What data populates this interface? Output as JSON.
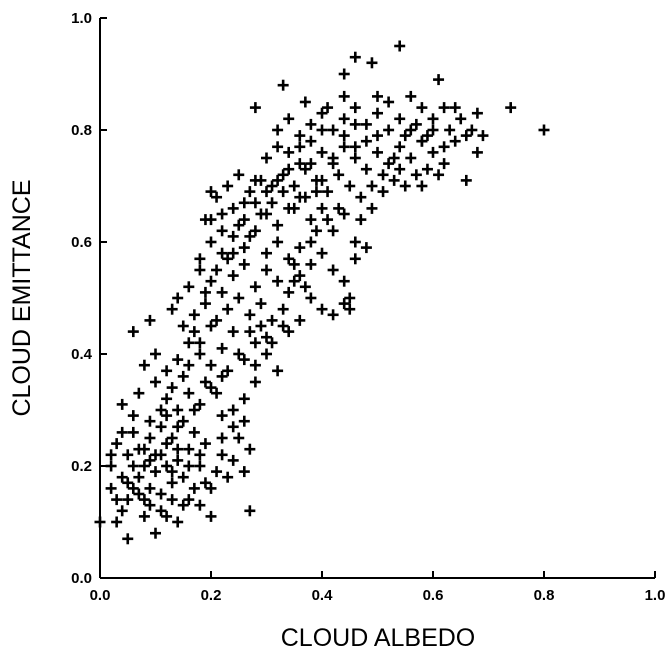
{
  "chart_data": {
    "type": "scatter",
    "title": "",
    "xlabel": "CLOUD ALBEDO",
    "ylabel": "CLOUD EMITTANCE",
    "xlim": [
      0.0,
      1.0
    ],
    "ylim": [
      0.0,
      1.0
    ],
    "x_ticks": [
      "0.0",
      "0.2",
      "0.4",
      "0.6",
      "0.8",
      "1.0"
    ],
    "y_ticks": [
      "0.0",
      "0.2",
      "0.4",
      "0.6",
      "0.8",
      "1.0"
    ],
    "grid": false,
    "marker": "plus",
    "color": "#000000",
    "series": [
      {
        "points": [
          [
            0.0,
            0.1
          ],
          [
            0.05,
            0.07
          ],
          [
            0.1,
            0.08
          ],
          [
            0.04,
            0.12
          ],
          [
            0.08,
            0.14
          ],
          [
            0.12,
            0.11
          ],
          [
            0.14,
            0.1
          ],
          [
            0.06,
            0.16
          ],
          [
            0.03,
            0.14
          ],
          [
            0.09,
            0.16
          ],
          [
            0.07,
            0.18
          ],
          [
            0.11,
            0.15
          ],
          [
            0.13,
            0.17
          ],
          [
            0.16,
            0.14
          ],
          [
            0.18,
            0.13
          ],
          [
            0.2,
            0.11
          ],
          [
            0.02,
            0.2
          ],
          [
            0.05,
            0.22
          ],
          [
            0.08,
            0.2
          ],
          [
            0.1,
            0.22
          ],
          [
            0.12,
            0.24
          ],
          [
            0.14,
            0.21
          ],
          [
            0.16,
            0.23
          ],
          [
            0.18,
            0.2
          ],
          [
            0.21,
            0.19
          ],
          [
            0.23,
            0.18
          ],
          [
            0.27,
            0.12
          ],
          [
            0.03,
            0.24
          ],
          [
            0.06,
            0.26
          ],
          [
            0.09,
            0.28
          ],
          [
            0.11,
            0.27
          ],
          [
            0.13,
            0.25
          ],
          [
            0.15,
            0.28
          ],
          [
            0.17,
            0.26
          ],
          [
            0.19,
            0.24
          ],
          [
            0.22,
            0.22
          ],
          [
            0.25,
            0.25
          ],
          [
            0.27,
            0.23
          ],
          [
            0.04,
            0.31
          ],
          [
            0.07,
            0.33
          ],
          [
            0.1,
            0.35
          ],
          [
            0.12,
            0.32
          ],
          [
            0.14,
            0.3
          ],
          [
            0.16,
            0.33
          ],
          [
            0.18,
            0.31
          ],
          [
            0.2,
            0.34
          ],
          [
            0.22,
            0.36
          ],
          [
            0.24,
            0.3
          ],
          [
            0.26,
            0.28
          ],
          [
            0.08,
            0.38
          ],
          [
            0.1,
            0.4
          ],
          [
            0.12,
            0.37
          ],
          [
            0.14,
            0.39
          ],
          [
            0.16,
            0.42
          ],
          [
            0.18,
            0.4
          ],
          [
            0.2,
            0.38
          ],
          [
            0.22,
            0.41
          ],
          [
            0.24,
            0.44
          ],
          [
            0.26,
            0.39
          ],
          [
            0.28,
            0.42
          ],
          [
            0.3,
            0.43
          ],
          [
            0.06,
            0.44
          ],
          [
            0.09,
            0.46
          ],
          [
            0.13,
            0.48
          ],
          [
            0.15,
            0.45
          ],
          [
            0.17,
            0.47
          ],
          [
            0.19,
            0.49
          ],
          [
            0.21,
            0.46
          ],
          [
            0.23,
            0.48
          ],
          [
            0.25,
            0.5
          ],
          [
            0.27,
            0.47
          ],
          [
            0.29,
            0.49
          ],
          [
            0.31,
            0.46
          ],
          [
            0.33,
            0.48
          ],
          [
            0.14,
            0.5
          ],
          [
            0.16,
            0.52
          ],
          [
            0.18,
            0.55
          ],
          [
            0.2,
            0.53
          ],
          [
            0.22,
            0.51
          ],
          [
            0.24,
            0.54
          ],
          [
            0.26,
            0.56
          ],
          [
            0.28,
            0.52
          ],
          [
            0.3,
            0.55
          ],
          [
            0.32,
            0.53
          ],
          [
            0.34,
            0.51
          ],
          [
            0.36,
            0.54
          ],
          [
            0.38,
            0.5
          ],
          [
            0.4,
            0.48
          ],
          [
            0.42,
            0.47
          ],
          [
            0.44,
            0.49
          ],
          [
            0.45,
            0.48
          ],
          [
            0.18,
            0.57
          ],
          [
            0.2,
            0.6
          ],
          [
            0.22,
            0.58
          ],
          [
            0.24,
            0.61
          ],
          [
            0.26,
            0.59
          ],
          [
            0.28,
            0.62
          ],
          [
            0.3,
            0.58
          ],
          [
            0.32,
            0.6
          ],
          [
            0.34,
            0.57
          ],
          [
            0.36,
            0.59
          ],
          [
            0.38,
            0.56
          ],
          [
            0.4,
            0.58
          ],
          [
            0.42,
            0.55
          ],
          [
            0.44,
            0.53
          ],
          [
            0.46,
            0.57
          ],
          [
            0.2,
            0.64
          ],
          [
            0.22,
            0.62
          ],
          [
            0.24,
            0.66
          ],
          [
            0.26,
            0.64
          ],
          [
            0.28,
            0.67
          ],
          [
            0.3,
            0.65
          ],
          [
            0.32,
            0.63
          ],
          [
            0.34,
            0.66
          ],
          [
            0.36,
            0.68
          ],
          [
            0.38,
            0.64
          ],
          [
            0.4,
            0.66
          ],
          [
            0.42,
            0.62
          ],
          [
            0.44,
            0.65
          ],
          [
            0.46,
            0.6
          ],
          [
            0.48,
            0.59
          ],
          [
            0.21,
            0.68
          ],
          [
            0.23,
            0.7
          ],
          [
            0.25,
            0.72
          ],
          [
            0.27,
            0.69
          ],
          [
            0.29,
            0.71
          ],
          [
            0.31,
            0.7
          ],
          [
            0.33,
            0.72
          ],
          [
            0.35,
            0.7
          ],
          [
            0.37,
            0.73
          ],
          [
            0.39,
            0.71
          ],
          [
            0.41,
            0.69
          ],
          [
            0.43,
            0.72
          ],
          [
            0.45,
            0.7
          ],
          [
            0.47,
            0.68
          ],
          [
            0.49,
            0.7
          ],
          [
            0.51,
            0.69
          ],
          [
            0.53,
            0.71
          ],
          [
            0.55,
            0.7
          ],
          [
            0.57,
            0.72
          ],
          [
            0.59,
            0.73
          ],
          [
            0.61,
            0.72
          ],
          [
            0.66,
            0.71
          ],
          [
            0.3,
            0.75
          ],
          [
            0.32,
            0.77
          ],
          [
            0.34,
            0.76
          ],
          [
            0.36,
            0.74
          ],
          [
            0.38,
            0.78
          ],
          [
            0.4,
            0.76
          ],
          [
            0.42,
            0.74
          ],
          [
            0.44,
            0.77
          ],
          [
            0.46,
            0.75
          ],
          [
            0.48,
            0.78
          ],
          [
            0.5,
            0.76
          ],
          [
            0.52,
            0.74
          ],
          [
            0.54,
            0.77
          ],
          [
            0.56,
            0.75
          ],
          [
            0.58,
            0.78
          ],
          [
            0.6,
            0.76
          ],
          [
            0.62,
            0.74
          ],
          [
            0.64,
            0.78
          ],
          [
            0.68,
            0.76
          ],
          [
            0.32,
            0.8
          ],
          [
            0.34,
            0.82
          ],
          [
            0.36,
            0.79
          ],
          [
            0.38,
            0.81
          ],
          [
            0.4,
            0.83
          ],
          [
            0.42,
            0.8
          ],
          [
            0.44,
            0.82
          ],
          [
            0.46,
            0.84
          ],
          [
            0.48,
            0.81
          ],
          [
            0.5,
            0.83
          ],
          [
            0.52,
            0.85
          ],
          [
            0.54,
            0.82
          ],
          [
            0.56,
            0.8
          ],
          [
            0.58,
            0.78
          ],
          [
            0.6,
            0.82
          ],
          [
            0.62,
            0.84
          ],
          [
            0.64,
            0.84
          ],
          [
            0.66,
            0.79
          ],
          [
            0.68,
            0.83
          ],
          [
            0.69,
            0.79
          ],
          [
            0.74,
            0.84
          ],
          [
            0.8,
            0.8
          ],
          [
            0.33,
            0.88
          ],
          [
            0.44,
            0.9
          ],
          [
            0.46,
            0.93
          ],
          [
            0.49,
            0.92
          ],
          [
            0.5,
            0.86
          ],
          [
            0.54,
            0.95
          ],
          [
            0.61,
            0.89
          ],
          [
            0.58,
            0.84
          ],
          [
            0.37,
            0.85
          ],
          [
            0.41,
            0.84
          ],
          [
            0.28,
            0.84
          ],
          [
            0.2,
            0.69
          ],
          [
            0.19,
            0.64
          ],
          [
            0.35,
            0.56
          ],
          [
            0.37,
            0.52
          ],
          [
            0.45,
            0.5
          ],
          [
            0.11,
            0.22
          ],
          [
            0.13,
            0.19
          ],
          [
            0.15,
            0.18
          ],
          [
            0.17,
            0.16
          ],
          [
            0.19,
            0.17
          ],
          [
            0.07,
            0.15
          ],
          [
            0.05,
            0.17
          ],
          [
            0.09,
            0.13
          ],
          [
            0.12,
            0.2
          ],
          [
            0.14,
            0.23
          ],
          [
            0.16,
            0.2
          ],
          [
            0.18,
            0.22
          ],
          [
            0.24,
            0.27
          ],
          [
            0.26,
            0.32
          ],
          [
            0.28,
            0.35
          ],
          [
            0.22,
            0.29
          ],
          [
            0.21,
            0.33
          ],
          [
            0.23,
            0.37
          ],
          [
            0.25,
            0.4
          ],
          [
            0.27,
            0.44
          ],
          [
            0.29,
            0.45
          ],
          [
            0.31,
            0.42
          ],
          [
            0.33,
            0.45
          ],
          [
            0.35,
            0.53
          ],
          [
            0.39,
            0.62
          ],
          [
            0.41,
            0.64
          ],
          [
            0.43,
            0.66
          ],
          [
            0.47,
            0.64
          ],
          [
            0.49,
            0.66
          ],
          [
            0.51,
            0.72
          ],
          [
            0.53,
            0.75
          ],
          [
            0.55,
            0.79
          ],
          [
            0.57,
            0.81
          ],
          [
            0.59,
            0.79
          ],
          [
            0.63,
            0.8
          ],
          [
            0.65,
            0.82
          ],
          [
            0.67,
            0.8
          ],
          [
            0.37,
            0.68
          ],
          [
            0.39,
            0.69
          ],
          [
            0.35,
            0.66
          ],
          [
            0.33,
            0.69
          ],
          [
            0.31,
            0.67
          ],
          [
            0.29,
            0.65
          ],
          [
            0.27,
            0.61
          ],
          [
            0.25,
            0.63
          ],
          [
            0.23,
            0.57
          ],
          [
            0.21,
            0.55
          ],
          [
            0.19,
            0.51
          ],
          [
            0.17,
            0.44
          ],
          [
            0.15,
            0.36
          ],
          [
            0.13,
            0.34
          ],
          [
            0.11,
            0.3
          ],
          [
            0.09,
            0.25
          ],
          [
            0.07,
            0.23
          ],
          [
            0.06,
            0.2
          ],
          [
            0.04,
            0.18
          ],
          [
            0.02,
            0.16
          ],
          [
            0.03,
            0.1
          ],
          [
            0.08,
            0.11
          ],
          [
            0.15,
            0.13
          ],
          [
            0.2,
            0.16
          ],
          [
            0.22,
            0.25
          ],
          [
            0.24,
            0.21
          ],
          [
            0.26,
            0.19
          ],
          [
            0.17,
            0.3
          ],
          [
            0.19,
            0.35
          ],
          [
            0.28,
            0.38
          ],
          [
            0.3,
            0.4
          ],
          [
            0.32,
            0.37
          ],
          [
            0.34,
            0.44
          ],
          [
            0.36,
            0.46
          ],
          [
            0.38,
            0.6
          ],
          [
            0.4,
            0.71
          ],
          [
            0.42,
            0.75
          ],
          [
            0.44,
            0.79
          ],
          [
            0.46,
            0.77
          ],
          [
            0.48,
            0.73
          ],
          [
            0.36,
            0.77
          ],
          [
            0.34,
            0.73
          ],
          [
            0.32,
            0.71
          ],
          [
            0.3,
            0.69
          ],
          [
            0.28,
            0.71
          ],
          [
            0.26,
            0.67
          ],
          [
            0.24,
            0.58
          ],
          [
            0.22,
            0.65
          ],
          [
            0.2,
            0.45
          ],
          [
            0.18,
            0.42
          ],
          [
            0.16,
            0.38
          ],
          [
            0.14,
            0.27
          ],
          [
            0.12,
            0.29
          ],
          [
            0.1,
            0.19
          ],
          [
            0.08,
            0.23
          ],
          [
            0.06,
            0.29
          ],
          [
            0.04,
            0.26
          ],
          [
            0.02,
            0.22
          ],
          [
            0.05,
            0.14
          ],
          [
            0.09,
            0.21
          ],
          [
            0.11,
            0.12
          ],
          [
            0.13,
            0.14
          ],
          [
            0.52,
            0.8
          ],
          [
            0.54,
            0.73
          ],
          [
            0.56,
            0.86
          ],
          [
            0.58,
            0.7
          ],
          [
            0.6,
            0.8
          ],
          [
            0.62,
            0.77
          ],
          [
            0.5,
            0.79
          ],
          [
            0.46,
            0.81
          ],
          [
            0.44,
            0.86
          ],
          [
            0.4,
            0.8
          ],
          [
            0.38,
            0.74
          ]
        ]
      }
    ]
  }
}
